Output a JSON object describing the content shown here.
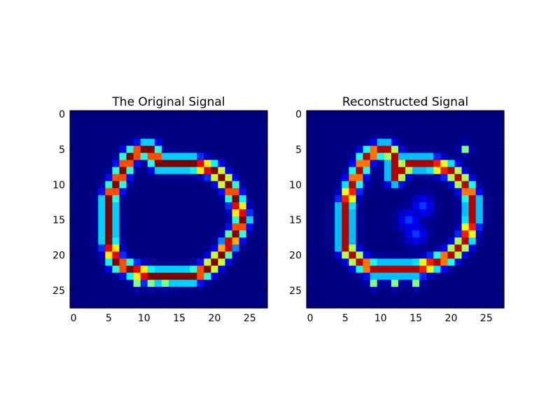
{
  "chart_data": [
    {
      "type": "heatmap",
      "title": "The Original Signal",
      "colormap": "jet",
      "grid": false,
      "image_size": [
        28,
        28
      ],
      "xlim": [
        -0.5,
        27.5
      ],
      "ylim": [
        27.5,
        -0.5
      ],
      "xticks": [
        0,
        5,
        10,
        15,
        20,
        25
      ],
      "yticks": [
        0,
        5,
        10,
        15,
        20,
        25
      ],
      "background_value": 0.0,
      "stroke": {
        "shape": "closed loop (handwritten digit 0)",
        "points": [
          [
            10,
            5
          ],
          [
            8,
            6
          ],
          [
            7,
            8
          ],
          [
            6,
            10
          ],
          [
            5,
            12
          ],
          [
            5,
            15
          ],
          [
            5,
            18
          ],
          [
            6,
            21
          ],
          [
            8,
            22
          ],
          [
            11,
            23
          ],
          [
            14,
            23
          ],
          [
            17,
            23
          ],
          [
            19,
            22
          ],
          [
            21,
            20
          ],
          [
            23,
            17
          ],
          [
            24,
            15
          ],
          [
            23,
            12
          ],
          [
            22,
            10
          ],
          [
            20,
            8
          ],
          [
            17,
            7
          ],
          [
            14,
            7
          ],
          [
            12,
            7
          ],
          [
            11,
            5
          ]
        ],
        "thin_segments": [
          [
            6,
            21
          ],
          [
            7,
            14
          ]
        ],
        "edge_dots": [
          [
            5,
            11
          ],
          [
            5,
            18
          ],
          [
            9,
            24
          ],
          [
            11,
            24
          ],
          [
            13,
            24
          ]
        ],
        "peak_value": 1.0
      }
    },
    {
      "type": "heatmap",
      "title": "Reconstructed Signal",
      "colormap": "jet",
      "grid": false,
      "image_size": [
        28,
        28
      ],
      "xlim": [
        -0.5,
        27.5
      ],
      "ylim": [
        27.5,
        -0.5
      ],
      "xticks": [
        0,
        5,
        10,
        15,
        20,
        25
      ],
      "yticks": [
        0,
        5,
        10,
        15,
        20,
        25
      ],
      "background_value": 0.0,
      "stroke": {
        "shape": "closed loop (reconstructed digit 0)",
        "points": [
          [
            10,
            5
          ],
          [
            8,
            6
          ],
          [
            7,
            8
          ],
          [
            6,
            10
          ],
          [
            5,
            13
          ],
          [
            5,
            16
          ],
          [
            5,
            19
          ],
          [
            7,
            21
          ],
          [
            9,
            22
          ],
          [
            12,
            22
          ],
          [
            15,
            22
          ],
          [
            18,
            21
          ],
          [
            20,
            20
          ],
          [
            22,
            18
          ],
          [
            23,
            15
          ],
          [
            23,
            12
          ],
          [
            22,
            10
          ],
          [
            20,
            8
          ],
          [
            17,
            7
          ],
          [
            14,
            7
          ],
          [
            12,
            9
          ],
          [
            12,
            6
          ],
          [
            11,
            5
          ]
        ],
        "inner_blobs": [
          [
            14,
            15
          ],
          [
            15,
            17
          ],
          [
            16,
            13
          ]
        ],
        "edge_dots": [
          [
            9,
            24
          ],
          [
            12,
            24
          ],
          [
            15,
            24
          ],
          [
            22,
            5
          ]
        ],
        "peak_value": 0.95
      }
    }
  ]
}
